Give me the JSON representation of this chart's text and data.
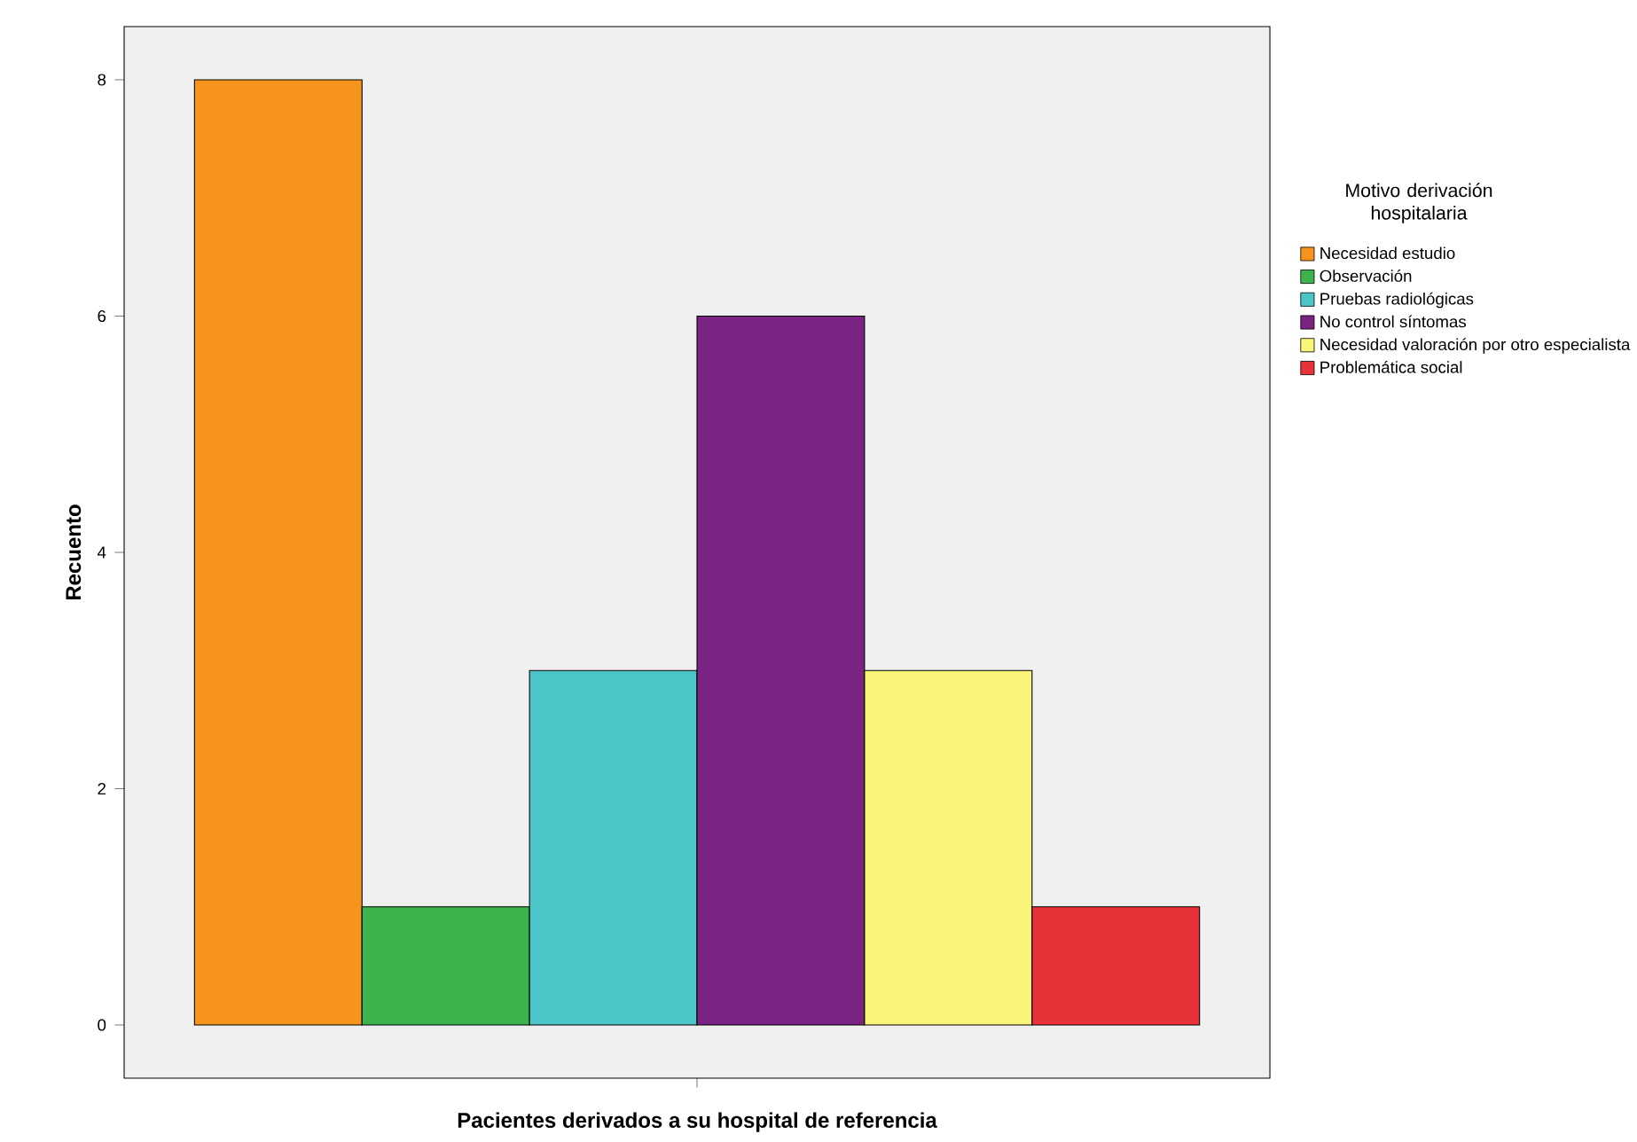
{
  "chart_data": {
    "type": "bar",
    "xlabel": "Pacientes derivados a su hospital de referencia",
    "ylabel": "Recuento",
    "legend_title": "Motivo derivación hospitalaria",
    "categories": [
      null
    ],
    "series": [
      {
        "name": "Necesidad estudio",
        "color": "#f7941d",
        "values": [
          8
        ]
      },
      {
        "name": "Observación",
        "color": "#3cb44b",
        "values": [
          1
        ]
      },
      {
        "name": "Pruebas radiológicas",
        "color": "#4cc5c8",
        "values": [
          3
        ]
      },
      {
        "name": "No control síntomas",
        "color": "#7b2382",
        "values": [
          6
        ]
      },
      {
        "name": "Necesidad valoración por otro especialista",
        "color": "#f8f57a",
        "values": [
          3
        ]
      },
      {
        "name": "Problemática social",
        "color": "#e8323a",
        "values": [
          1
        ]
      }
    ],
    "ylim": [
      -0.45,
      8.45
    ],
    "yticks": [
      0,
      2,
      4,
      6,
      8
    ],
    "legend": "right",
    "grid": false
  }
}
